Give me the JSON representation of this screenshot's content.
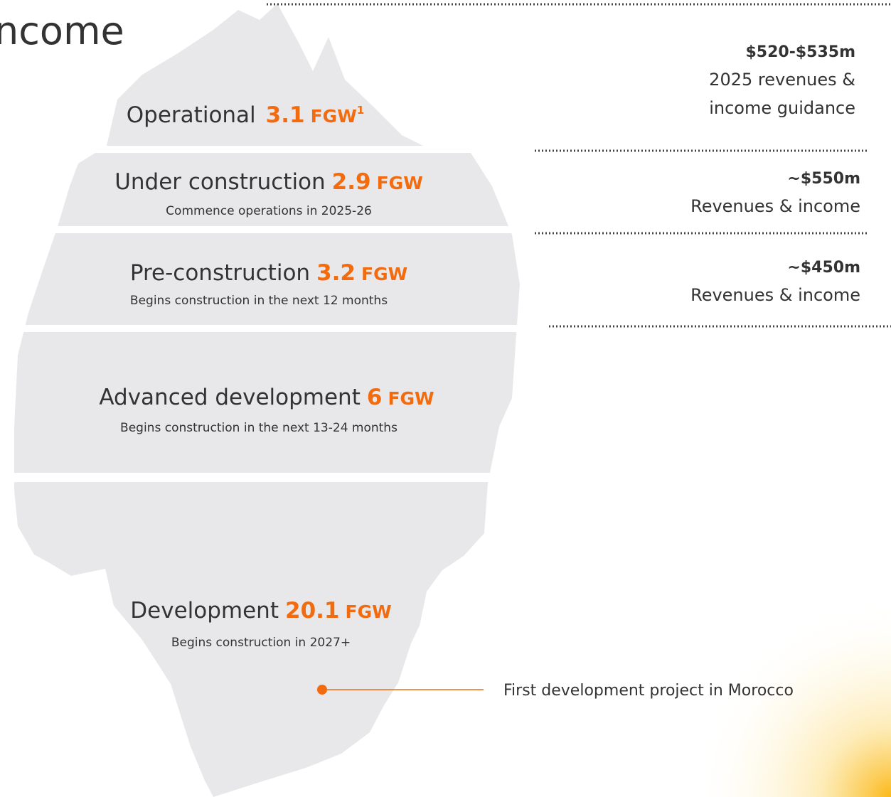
{
  "title": "ncome",
  "layers": [
    {
      "name": "Operational",
      "value": 3.1,
      "unit": "FGW",
      "note": "1"
    },
    {
      "name": "Under construction",
      "value": 2.9,
      "unit": "FGW",
      "subtitle": "Commence operations in 2025-26"
    },
    {
      "name": "Pre-construction",
      "value": 3.2,
      "unit": "FGW",
      "subtitle": "Begins construction in the next 12 months"
    },
    {
      "name": "Advanced development",
      "value": 6,
      "unit": "FGW",
      "subtitle": "Begins construction in the next 13-24 months"
    },
    {
      "name": "Development",
      "value": 20.1,
      "unit": "FGW",
      "subtitle": "Begins construction in 2027+"
    }
  ],
  "guidance": [
    {
      "amount": "$520-$535m",
      "lines": [
        "2025 revenues &",
        "income guidance"
      ]
    },
    {
      "amount": "~$550m",
      "lines": [
        "Revenues & income"
      ]
    },
    {
      "amount": "~$450m",
      "lines": [
        "Revenues & income"
      ]
    }
  ],
  "annotation": "First development project in Morocco"
}
